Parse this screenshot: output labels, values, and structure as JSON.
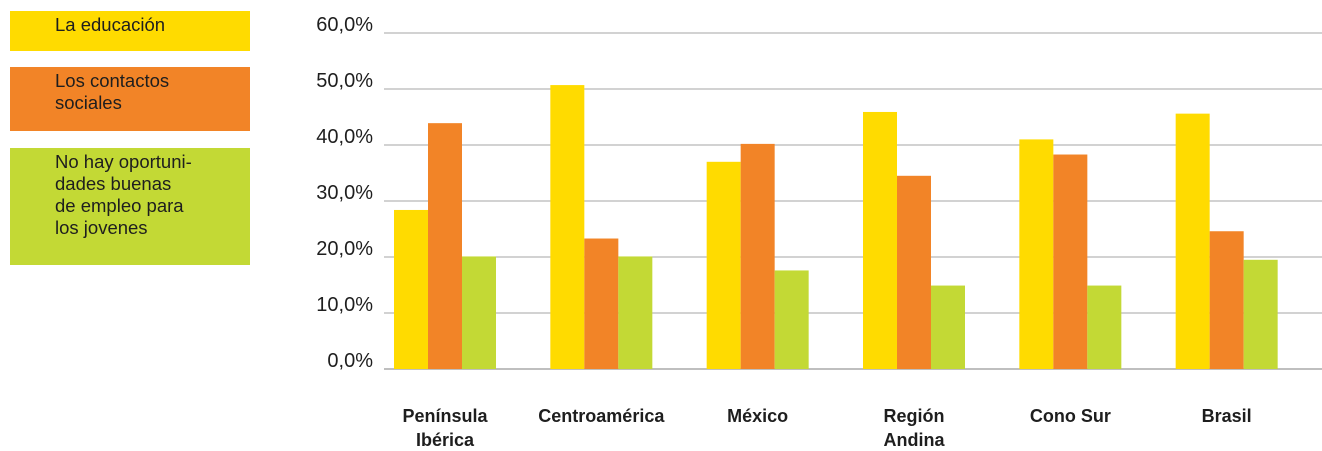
{
  "chart_data": {
    "type": "bar",
    "categories": [
      [
        "Península",
        "Ibérica"
      ],
      [
        "Centroamérica"
      ],
      [
        "México"
      ],
      [
        "Región",
        "Andina"
      ],
      [
        "Cono Sur"
      ],
      [
        "Brasil"
      ]
    ],
    "series": [
      {
        "name": "La educación",
        "color": "#FFDB00",
        "values": [
          28.4,
          50.7,
          37.0,
          45.9,
          41.0,
          45.6
        ]
      },
      {
        "name": "Los contactos\nsociales",
        "color": "#F28427",
        "values": [
          43.9,
          23.3,
          40.2,
          34.5,
          38.3,
          24.6
        ]
      },
      {
        "name": "No hay oportuni-\ndades buenas\nde empleo para\nlos jovenes",
        "color": "#C3D935",
        "values": [
          20.1,
          20.1,
          17.6,
          14.9,
          14.9,
          19.5
        ]
      }
    ],
    "yticks": [
      "0,0%",
      "10,0%",
      "20,0%",
      "30,0%",
      "40,0%",
      "50,0%",
      "60,0%"
    ],
    "ylim": [
      0,
      60
    ],
    "grid": true,
    "legend": "left"
  }
}
